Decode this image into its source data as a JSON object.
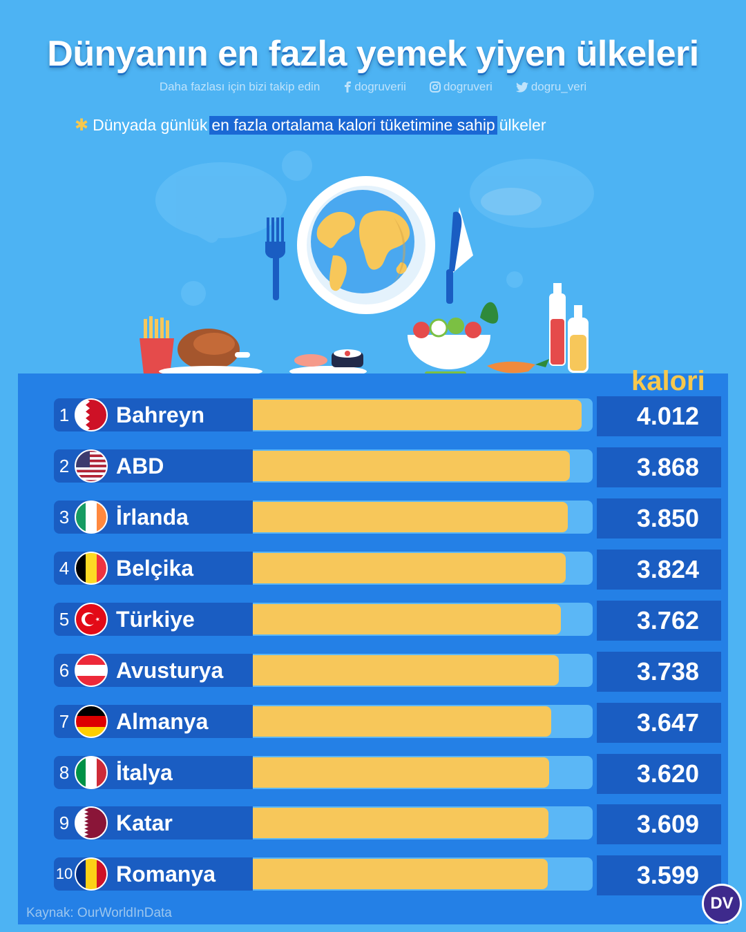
{
  "header": {
    "title": "Dünyanın en fazla yemek yiyen ülkeleri",
    "follow_text": "Daha fazlası için bizi takip edin",
    "facebook": "dogruverii",
    "instagram": "dogruveri",
    "twitter": "dogru_veri"
  },
  "subtitle": {
    "before": "Dünyada günlük",
    "highlight": "en fazla ortalama kalori tüketimine sahip",
    "after": "ülkeler"
  },
  "chart_data": {
    "type": "bar",
    "title": "Dünyanın en fazla yemek yiyen ülkeleri",
    "value_header": "kalori",
    "categories": [
      "Bahreyn",
      "ABD",
      "İrlanda",
      "Belçika",
      "Türkiye",
      "Avusturya",
      "Almanya",
      "İtalya",
      "Katar",
      "Romanya"
    ],
    "ranks": [
      "1",
      "2",
      "3",
      "4",
      "5",
      "6",
      "7",
      "8",
      "9",
      "10"
    ],
    "labels": [
      "4.012",
      "3.868",
      "3.850",
      "3.824",
      "3.762",
      "3.738",
      "3.647",
      "3.620",
      "3.609",
      "3.599"
    ],
    "values": [
      4012,
      3868,
      3850,
      3824,
      3762,
      3738,
      3647,
      3620,
      3609,
      3599
    ],
    "orientation": "horizontal"
  },
  "flags": [
    "bahrain",
    "usa",
    "ireland",
    "belgium",
    "turkey",
    "austria",
    "germany",
    "italy",
    "qatar",
    "romania"
  ],
  "footer": {
    "source": "Kaynak: OurWorldInData",
    "logo": "DV"
  },
  "colors": {
    "background": "#4db3f3",
    "panel": "#2480e6",
    "label_box": "#1a5dc2",
    "bar": "#f7c75a",
    "track": "#5bb7f6",
    "accent": "#f7c84d"
  }
}
